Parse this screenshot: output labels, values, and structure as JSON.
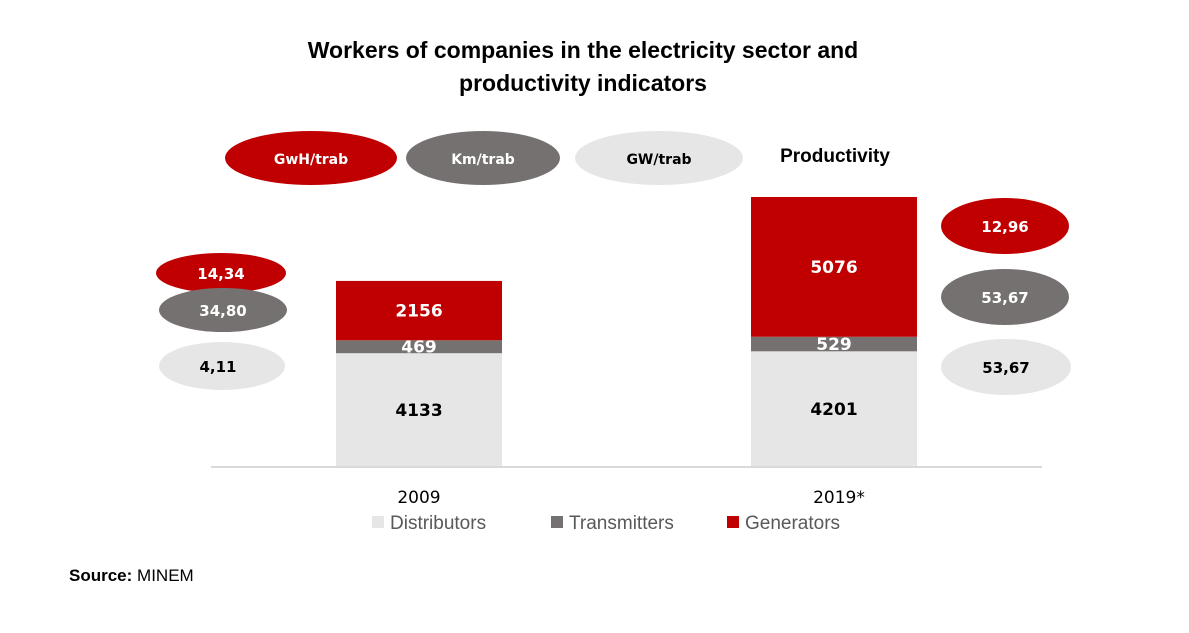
{
  "title_lines": [
    "Workers of companies in the electricity sector and",
    "productivity indicators"
  ],
  "productivity_heading": "Productivity",
  "indicator_legend": [
    {
      "label": "GwH/trab",
      "color": "#c00000",
      "text_color": "#ffffff"
    },
    {
      "label": "Km/trab",
      "color": "#767171",
      "text_color": "#ffffff"
    },
    {
      "label": "GW/trab",
      "color": "#e7e6e6",
      "text_color": "#000000"
    }
  ],
  "indicators": [
    {
      "year": "2009",
      "values": [
        "14,34",
        "34,80",
        "4,11"
      ]
    },
    {
      "year": "2019*",
      "values": [
        "12,96",
        "53,67",
        "53,67"
      ]
    }
  ],
  "chart_data": {
    "type": "bar",
    "stacked": true,
    "categories": [
      "2009",
      "2019*"
    ],
    "series": [
      {
        "name": "Distributors",
        "values": [
          4133,
          4201
        ],
        "color": "#e7e6e6",
        "label_color": "#000000"
      },
      {
        "name": "Transmitters",
        "values": [
          469,
          529
        ],
        "color": "#767171",
        "label_color": "#ffffff"
      },
      {
        "name": "Generators",
        "values": [
          2156,
          5076
        ],
        "color": "#c00000",
        "label_color": "#ffffff"
      }
    ],
    "legend_position": "bottom",
    "grid": false
  },
  "source": {
    "label": "Source:",
    "text": "MINEM"
  }
}
